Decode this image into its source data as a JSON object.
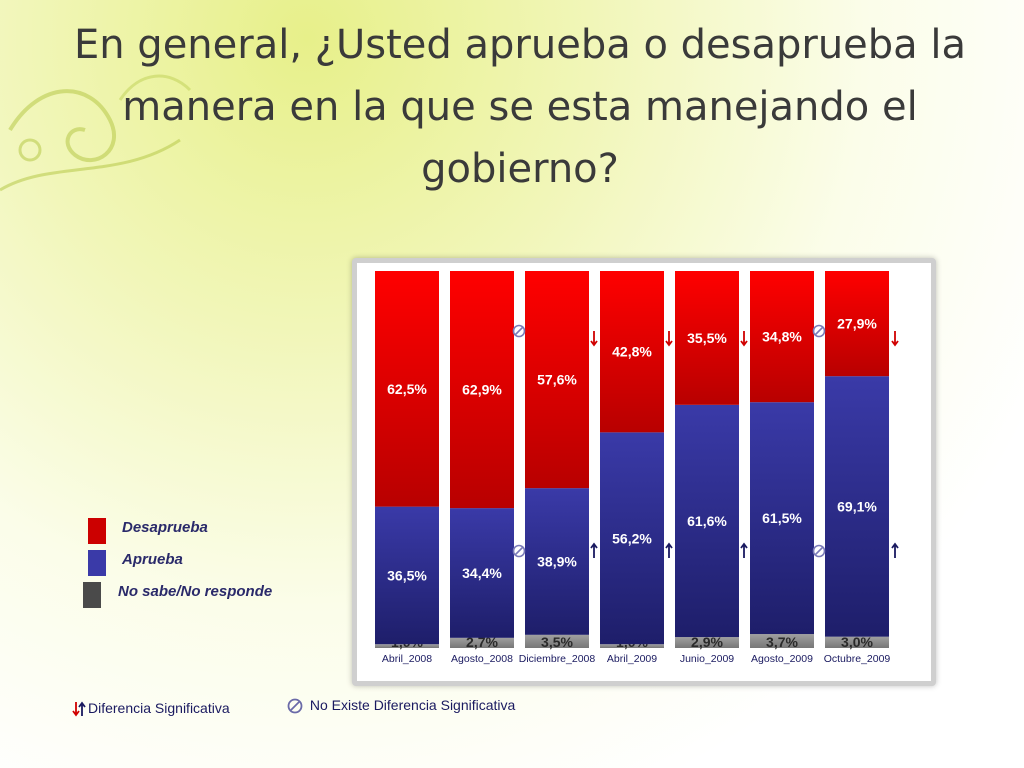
{
  "title": "En general, ¿Usted aprueba o desaprueba la manera en la que se esta manejando el gobierno?",
  "chart_data": {
    "type": "bar",
    "stacked": true,
    "categories": [
      "Abril_2008",
      "Agosto_2008",
      "Diciembre_2008",
      "Abril_2009",
      "Junio_2009",
      "Agosto_2009",
      "Octubre_2009"
    ],
    "series": [
      {
        "name": "No sabe/No responde",
        "values": [
          1.0,
          2.7,
          3.5,
          1.0,
          2.9,
          3.7,
          3.0
        ],
        "labels": [
          "1,0%",
          "2,7%",
          "3,5%",
          "1,0%",
          "2,9%",
          "3,7%",
          "3,0%"
        ],
        "color": "#8c8c8c"
      },
      {
        "name": "Aprueba",
        "values": [
          36.5,
          34.4,
          38.9,
          56.2,
          61.6,
          61.5,
          69.1
        ],
        "labels": [
          "36,5%",
          "34,4%",
          "38,9%",
          "56,2%",
          "61,6%",
          "61,5%",
          "69,1%"
        ],
        "color": "#2e2e8f"
      },
      {
        "name": "Desaprueba",
        "values": [
          62.5,
          62.9,
          57.6,
          42.8,
          35.5,
          34.8,
          27.9
        ],
        "labels": [
          "62,5%",
          "62,9%",
          "57,6%",
          "42,8%",
          "35,5%",
          "34,8%",
          "27,9%"
        ],
        "color": "#e00000"
      }
    ],
    "ylim": [
      0,
      100
    ],
    "markers": {
      "Desaprueba": [
        "",
        "",
        "no-sig",
        "down",
        "down",
        "down",
        "no-sig down"
      ],
      "Aprueba": [
        "",
        "",
        "no-sig",
        "up",
        "up",
        "up",
        "no-sig up"
      ]
    }
  },
  "legend": [
    {
      "label": "Desaprueba",
      "color": "#cc0000"
    },
    {
      "label": "Aprueba",
      "color": "#3a3aa8"
    },
    {
      "label": "No sabe/No responde",
      "color": "#4a4a4a"
    }
  ],
  "notes": {
    "significant": "Diferencia Significativa",
    "not_significant": "No Existe Diferencia Significativa"
  }
}
